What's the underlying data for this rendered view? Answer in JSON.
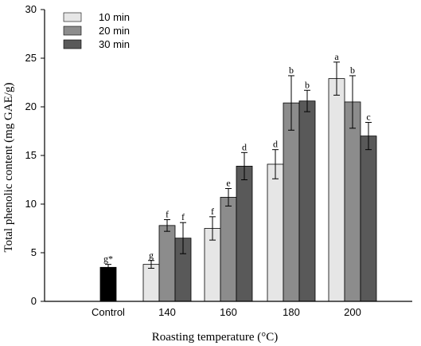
{
  "chart_data": {
    "type": "bar",
    "title": "",
    "xlabel": "Roasting temperature (°C)",
    "ylabel": "Total phenolic content (mg GAE/g)",
    "ylim": [
      0,
      30
    ],
    "yticks": [
      "0",
      "5",
      "10",
      "15",
      "20",
      "25",
      "30"
    ],
    "categories": [
      "Control",
      "140",
      "160",
      "180",
      "200"
    ],
    "control": {
      "category": "Control",
      "value": 3.5,
      "error": 0.3,
      "letter": "g*",
      "color": "#000000"
    },
    "series": [
      {
        "name": "10 min",
        "color": "#e6e6e6",
        "values": [
          null,
          3.8,
          7.5,
          14.1,
          22.9
        ],
        "errors": [
          null,
          0.4,
          1.2,
          1.5,
          1.7
        ],
        "letters": [
          null,
          "g",
          "f",
          "d",
          "a"
        ]
      },
      {
        "name": "20 min",
        "color": "#8c8c8c",
        "values": [
          null,
          7.8,
          10.7,
          20.4,
          20.5
        ],
        "errors": [
          null,
          0.6,
          0.9,
          2.8,
          2.7
        ],
        "letters": [
          null,
          "f",
          "e",
          "b",
          "b"
        ]
      },
      {
        "name": "30 min",
        "color": "#595959",
        "values": [
          null,
          6.5,
          13.9,
          20.6,
          17.0
        ],
        "errors": [
          null,
          1.6,
          1.4,
          1.1,
          1.4
        ],
        "letters": [
          null,
          "f",
          "d",
          "b",
          "c"
        ]
      }
    ],
    "legend_position": "top-left",
    "grid": false
  }
}
